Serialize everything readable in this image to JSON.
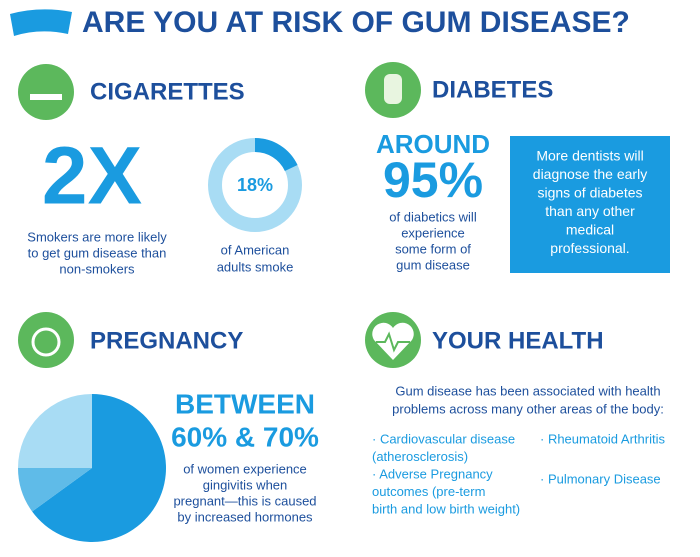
{
  "header": {
    "title": "ARE YOU AT RISK OF GUM DISEASE?"
  },
  "cigarettes": {
    "heading": "CIGARETTES",
    "stat": "2X",
    "stat_text": [
      "Smokers are more likely",
      "to get gum disease than",
      "non-smokers"
    ],
    "donut": {
      "value": 18,
      "label": "18%"
    },
    "donut_text": [
      "of American",
      "adults smoke"
    ]
  },
  "diabetes": {
    "heading": "DIABETES",
    "prefix": "AROUND",
    "stat": "95%",
    "stat_text": [
      "of diabetics will",
      "experience",
      "some form of",
      "gum disease"
    ],
    "box_text": [
      "More dentists will",
      "diagnose the early",
      "signs of diabetes",
      "than any other",
      "medical",
      "professional."
    ]
  },
  "pregnancy": {
    "heading": "PREGNANCY",
    "prefix": "BETWEEN",
    "stat": "60% & 70%",
    "pie": {
      "values": [
        65,
        10,
        25
      ],
      "colors": [
        "#1a9be0",
        "#5fbbe8",
        "#a8dcf4"
      ]
    },
    "stat_text": [
      "of women experience",
      "gingivitis when",
      "pregnant—this is caused",
      "by increased hormones"
    ]
  },
  "health": {
    "heading": "YOUR HEALTH",
    "intro": [
      "Gum disease has been associated with health",
      "problems across many other areas of the body:"
    ],
    "col1": [
      "·  Cardiovascular disease",
      "(atherosclerosis)",
      "·  Adverse Pregnancy",
      "outcomes (pre-term",
      "birth and low birth weight)"
    ],
    "col2": [
      "·  Rheumatoid Arthritis",
      "·  Pulmonary Disease"
    ]
  }
}
